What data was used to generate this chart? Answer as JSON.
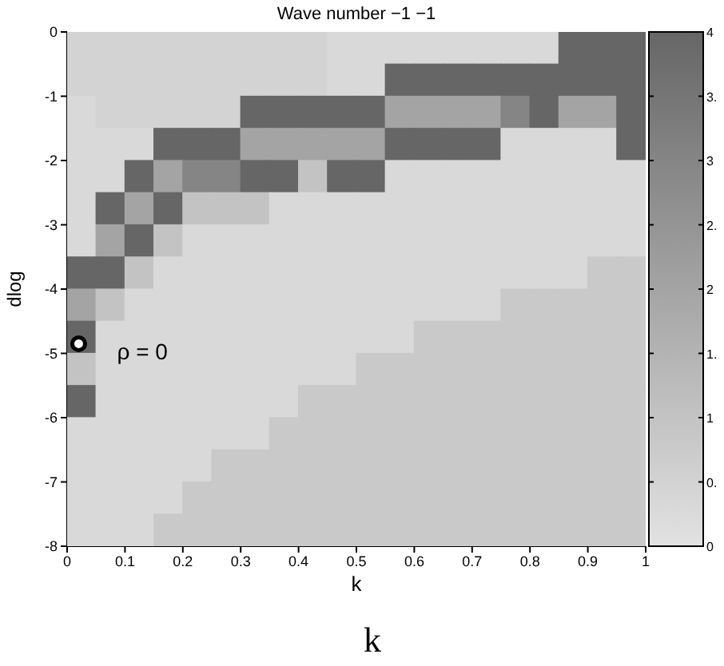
{
  "chart_data": {
    "type": "heatmap",
    "title": "Wave number −1 −1",
    "xlabel": "k",
    "ylabel": "dlog",
    "x": [
      0.025,
      0.075,
      0.125,
      0.175,
      0.225,
      0.275,
      0.325,
      0.375,
      0.425,
      0.475,
      0.525,
      0.575,
      0.625,
      0.675,
      0.725,
      0.775,
      0.825,
      0.875,
      0.925,
      0.975
    ],
    "y": [
      -0.25,
      -0.75,
      -1.25,
      -1.75,
      -2.25,
      -2.75,
      -3.25,
      -3.75,
      -4.25,
      -4.75,
      -5.25,
      -5.75,
      -6.25,
      -6.75,
      -7.25,
      -7.75
    ],
    "xlim": [
      0,
      1
    ],
    "xticks": [
      0,
      0.1,
      0.2,
      0.3,
      0.4,
      0.5,
      0.6,
      0.7,
      0.8,
      0.9,
      1
    ],
    "ylim": [
      -8,
      0
    ],
    "yticks": [
      0,
      -1,
      -2,
      -3,
      -4,
      -5,
      -6,
      -7,
      -8
    ],
    "clim": [
      0,
      4
    ],
    "cticks": [
      0,
      {
        "value": 0.5,
        "label": "0."
      },
      1,
      {
        "value": 1.5,
        "label": "1."
      },
      2,
      {
        "value": 2.5,
        "label": "2."
      },
      3,
      {
        "value": 3.5,
        "label": "3."
      },
      4
    ],
    "annotations": [
      "ρ = 0",
      "k"
    ],
    "cells": [
      [
        0.5,
        0.5,
        0.5,
        0.5,
        0.5,
        0.5,
        0.5,
        0.5,
        0.5,
        0.3,
        0.3,
        0.3,
        0.3,
        0.3,
        0.3,
        0.3,
        0.3,
        4,
        4,
        4
      ],
      [
        0.5,
        0.5,
        0.5,
        0.5,
        0.5,
        0.5,
        0.5,
        0.5,
        0.5,
        0.3,
        0.3,
        4,
        4,
        4,
        4,
        4,
        4,
        4,
        4,
        4
      ],
      [
        0.3,
        0.5,
        0.5,
        0.5,
        0.5,
        0.5,
        4,
        4,
        4,
        4,
        4,
        2,
        2,
        2,
        2,
        3,
        4,
        2,
        2,
        4
      ],
      [
        0.3,
        0.3,
        0.3,
        4,
        4,
        4,
        2,
        2,
        2,
        2,
        2,
        4,
        4,
        4,
        4,
        0.3,
        0.3,
        0.3,
        0.3,
        4
      ],
      [
        0.3,
        0.3,
        4,
        2,
        3,
        3,
        4,
        4,
        1,
        4,
        4,
        0.3,
        0.3,
        0.3,
        0.3,
        0.3,
        0.3,
        0.3,
        0.3,
        0.3
      ],
      [
        0.3,
        4,
        2,
        4,
        1,
        1,
        1,
        0.3,
        0.3,
        0.3,
        0.3,
        0.3,
        0.3,
        0.3,
        0.3,
        0.3,
        0.3,
        0.3,
        0.3,
        0.3
      ],
      [
        0.3,
        2,
        4,
        1,
        0.3,
        0.3,
        0.3,
        0.3,
        0.3,
        0.3,
        0.3,
        0.3,
        0.3,
        0.3,
        0.3,
        0.3,
        0.3,
        0.3,
        0.3,
        0.3
      ],
      [
        4,
        4,
        1,
        0.3,
        0.3,
        0.3,
        0.3,
        0.3,
        0.3,
        0.3,
        0.3,
        0.3,
        0.3,
        0.3,
        0.3,
        0.3,
        0.3,
        0.3,
        0.8,
        0.8
      ],
      [
        2,
        1,
        0.3,
        0.3,
        0.3,
        0.3,
        0.3,
        0.3,
        0.3,
        0.3,
        0.3,
        0.3,
        0.3,
        0.3,
        0.3,
        0.8,
        0.8,
        0.8,
        0.8,
        0.8
      ],
      [
        4,
        0.3,
        0.3,
        0.3,
        0.3,
        0.3,
        0.3,
        0.3,
        0.3,
        0.3,
        0.3,
        0.3,
        0.8,
        0.8,
        0.8,
        0.8,
        0.8,
        0.8,
        0.8,
        0.8
      ],
      [
        1,
        0.3,
        0.3,
        0.3,
        0.3,
        0.3,
        0.3,
        0.3,
        0.3,
        0.3,
        0.8,
        0.8,
        0.8,
        0.8,
        0.8,
        0.8,
        0.8,
        0.8,
        0.8,
        0.8
      ],
      [
        4,
        0.3,
        0.3,
        0.3,
        0.3,
        0.3,
        0.3,
        0.3,
        0.8,
        0.8,
        0.8,
        0.8,
        0.8,
        0.8,
        0.8,
        0.8,
        0.8,
        0.8,
        0.8,
        0.8
      ],
      [
        0.3,
        0.3,
        0.3,
        0.3,
        0.3,
        0.3,
        0.3,
        0.8,
        0.8,
        0.8,
        0.8,
        0.8,
        0.8,
        0.8,
        0.8,
        0.8,
        0.8,
        0.8,
        0.8,
        0.8
      ],
      [
        0.3,
        0.3,
        0.3,
        0.3,
        0.3,
        0.8,
        0.8,
        0.8,
        0.8,
        0.8,
        0.8,
        0.8,
        0.8,
        0.8,
        0.8,
        0.8,
        0.8,
        0.8,
        0.8,
        0.8
      ],
      [
        0.3,
        0.3,
        0.3,
        0.3,
        0.8,
        0.8,
        0.8,
        0.8,
        0.8,
        0.8,
        0.8,
        0.8,
        0.8,
        0.8,
        0.8,
        0.8,
        0.8,
        0.8,
        0.8,
        0.8
      ],
      [
        0.3,
        0.3,
        0.3,
        0.8,
        0.8,
        0.8,
        0.8,
        0.8,
        0.8,
        0.8,
        0.8,
        0.8,
        0.8,
        0.8,
        0.8,
        0.8,
        0.8,
        0.8,
        0.8,
        0.8
      ]
    ]
  }
}
